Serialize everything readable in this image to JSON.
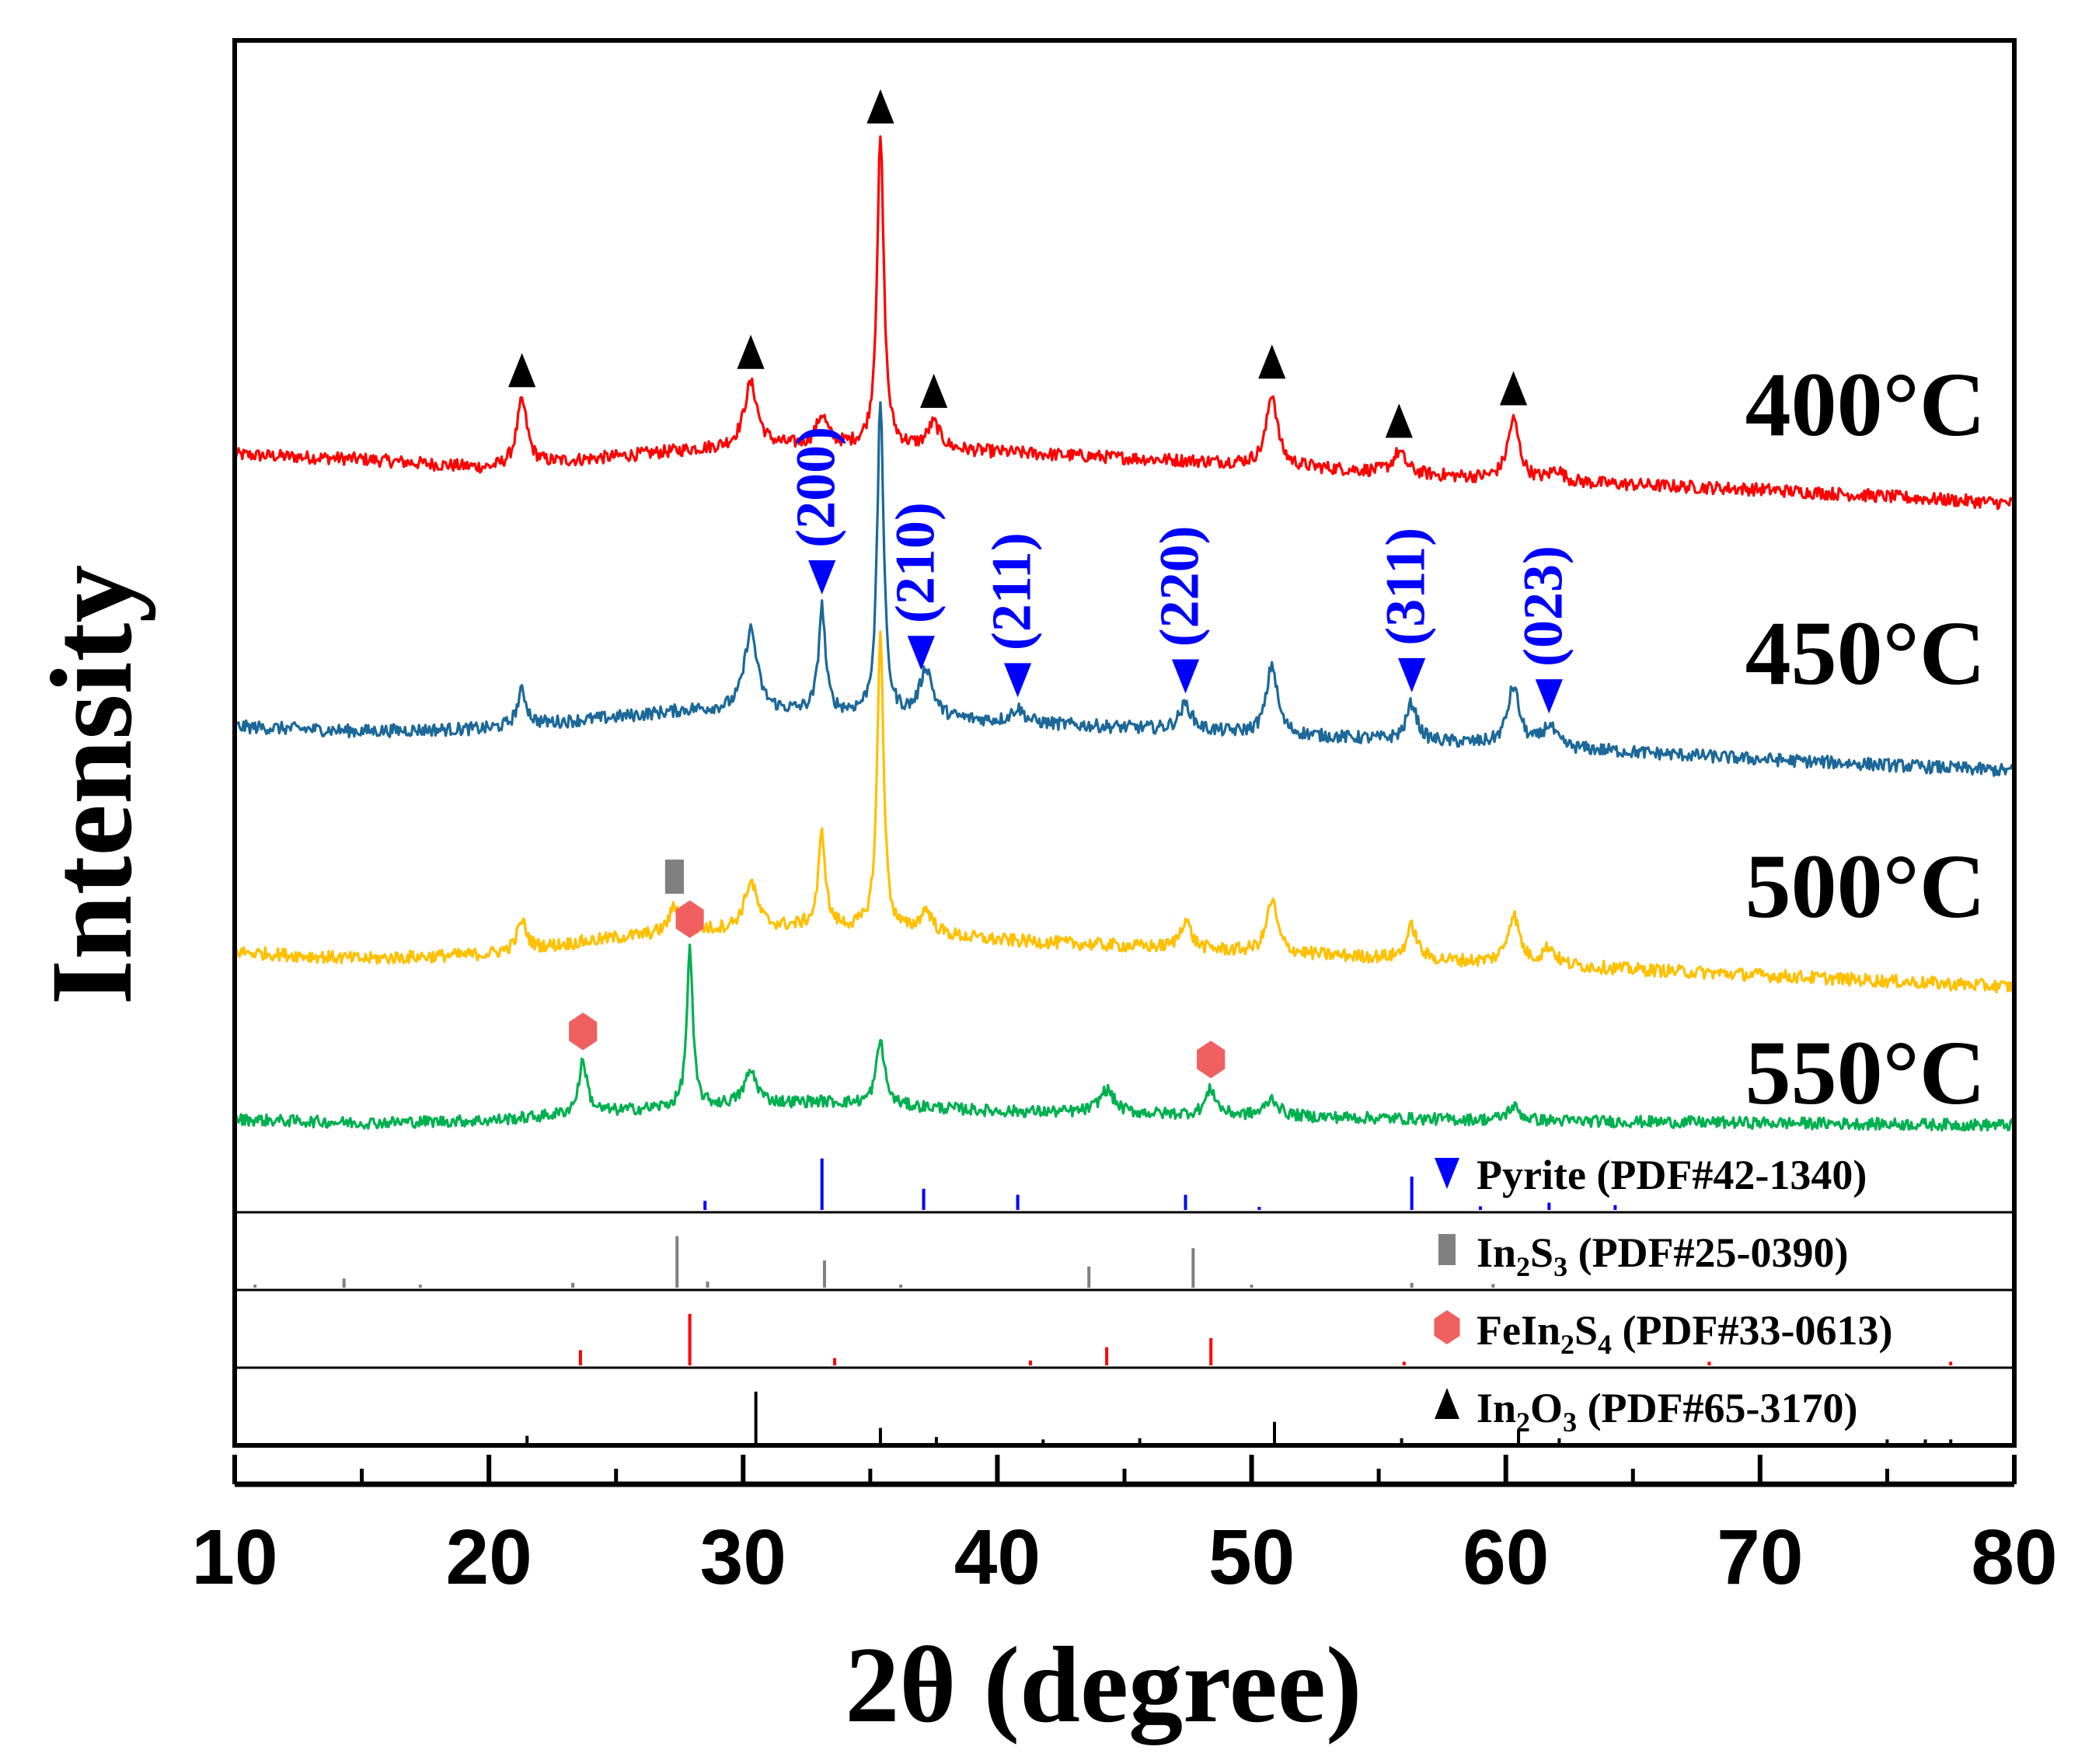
{
  "chart_data": {
    "type": "line",
    "xlabel": "2θ (degree)",
    "ylabel": "Intensity",
    "xlim": [
      10,
      80
    ],
    "x_ticks": [
      10,
      20,
      30,
      40,
      50,
      60,
      70,
      80
    ],
    "x_tick_labels": [
      "10",
      "20",
      "30",
      "40",
      "50",
      "60",
      "70",
      "80"
    ],
    "series": [
      {
        "name": "400°C",
        "label": "400°C",
        "color": "#ff0000",
        "baseline": [
          [
            10,
            0.42
          ],
          [
            15,
            0.38
          ],
          [
            20,
            0.3
          ],
          [
            25,
            0.4
          ],
          [
            28,
            0.46
          ],
          [
            33,
            0.5
          ],
          [
            40,
            0.44
          ],
          [
            50,
            0.34
          ],
          [
            60,
            0.2
          ],
          [
            70,
            0.12
          ],
          [
            80,
            0.0
          ]
        ],
        "peaks": [
          [
            21.3,
            0.55,
            0.25
          ],
          [
            30.3,
            0.55,
            0.32
          ],
          [
            33.1,
            0.25,
            0.25
          ],
          [
            35.4,
            2.65,
            0.16
          ],
          [
            37.5,
            0.22,
            0.3
          ],
          [
            50.8,
            0.62,
            0.25
          ],
          [
            55.8,
            0.18,
            0.3
          ],
          [
            60.3,
            0.52,
            0.28
          ],
          [
            62.0,
            0.1,
            0.3
          ]
        ],
        "noise": 0.055
      },
      {
        "name": "450°C",
        "label": "450°C",
        "color": "#1c6898",
        "baseline": [
          [
            10,
            0.38
          ],
          [
            15,
            0.34
          ],
          [
            20,
            0.36
          ],
          [
            25,
            0.46
          ],
          [
            28,
            0.52
          ],
          [
            33,
            0.5
          ],
          [
            40,
            0.42
          ],
          [
            50,
            0.32
          ],
          [
            60,
            0.22
          ],
          [
            70,
            0.1
          ],
          [
            80,
            0.0
          ]
        ],
        "peaks": [
          [
            21.3,
            0.3,
            0.22
          ],
          [
            30.3,
            0.7,
            0.3
          ],
          [
            33.1,
            0.9,
            0.16
          ],
          [
            35.4,
            2.7,
            0.15
          ],
          [
            37.2,
            0.42,
            0.3
          ],
          [
            40.8,
            0.12,
            0.3
          ],
          [
            47.4,
            0.22,
            0.3
          ],
          [
            50.8,
            0.6,
            0.25
          ],
          [
            56.3,
            0.32,
            0.25
          ],
          [
            60.3,
            0.5,
            0.28
          ],
          [
            61.7,
            0.18,
            0.3
          ]
        ],
        "noise": 0.055
      },
      {
        "name": "500°C",
        "label": "500°C",
        "color": "#ffc000",
        "baseline": [
          [
            10,
            0.3
          ],
          [
            15,
            0.24
          ],
          [
            20,
            0.28
          ],
          [
            25,
            0.42
          ],
          [
            28,
            0.48
          ],
          [
            33,
            0.52
          ],
          [
            40,
            0.4
          ],
          [
            50,
            0.3
          ],
          [
            60,
            0.2
          ],
          [
            70,
            0.1
          ],
          [
            80,
            0.0
          ]
        ],
        "peaks": [
          [
            21.3,
            0.25,
            0.22
          ],
          [
            27.3,
            0.22,
            0.25
          ],
          [
            30.3,
            0.4,
            0.3
          ],
          [
            33.1,
            0.8,
            0.16
          ],
          [
            35.4,
            2.55,
            0.15
          ],
          [
            37.2,
            0.2,
            0.3
          ],
          [
            47.4,
            0.25,
            0.25
          ],
          [
            50.8,
            0.45,
            0.25
          ],
          [
            56.3,
            0.28,
            0.25
          ],
          [
            60.3,
            0.42,
            0.28
          ],
          [
            61.7,
            0.15,
            0.3
          ]
        ],
        "noise": 0.055
      },
      {
        "name": "550°C",
        "label": "550°C",
        "color": "#00b050",
        "baseline": [
          [
            10,
            0.05
          ],
          [
            15,
            0.02
          ],
          [
            20,
            0.04
          ],
          [
            25,
            0.12
          ],
          [
            28,
            0.16
          ],
          [
            33,
            0.2
          ],
          [
            40,
            0.12
          ],
          [
            50,
            0.08
          ],
          [
            60,
            0.04
          ],
          [
            70,
            0.02
          ],
          [
            80,
            0.0
          ]
        ],
        "peaks": [
          [
            23.7,
            0.45,
            0.2
          ],
          [
            27.9,
            1.35,
            0.14
          ],
          [
            30.3,
            0.28,
            0.3
          ],
          [
            35.4,
            0.55,
            0.2
          ],
          [
            44.3,
            0.2,
            0.35
          ],
          [
            48.4,
            0.22,
            0.25
          ],
          [
            50.8,
            0.15,
            0.3
          ],
          [
            60.3,
            0.12,
            0.3
          ]
        ],
        "noise": 0.05
      }
    ],
    "peak_markers": [
      {
        "phase": "In2O3",
        "symbol": "triangle-up",
        "color": "#000000",
        "series": "400°C",
        "x": [
          21.3,
          30.3,
          35.4,
          37.5,
          50.8,
          55.8,
          60.3
        ]
      },
      {
        "phase": "Pyrite",
        "symbol": "triangle-down",
        "color": "#0000ff",
        "series": "450°C",
        "x": [
          33.1,
          37.0,
          40.8,
          47.4,
          56.3,
          61.7
        ]
      },
      {
        "phase": "In2S3",
        "symbol": "square",
        "color": "#808080",
        "series": "500°C",
        "x": [
          27.3
        ]
      },
      {
        "phase": "FeIn2S4",
        "symbol": "hexagon",
        "color": "#f06060",
        "series": "550°C",
        "x": [
          23.7,
          27.9,
          48.4
        ]
      }
    ],
    "annotations": [
      {
        "text": "(200)",
        "x": 33.1
      },
      {
        "text": "(210)",
        "x": 37.0
      },
      {
        "text": "(211)",
        "x": 40.8
      },
      {
        "text": "(220)",
        "x": 47.4
      },
      {
        "text": "(311)",
        "x": 56.3
      },
      {
        "text": "(023)",
        "x": 61.7
      }
    ],
    "reference_patterns": [
      {
        "label": "Pyrite (PDF#42-1340)",
        "name_main": "Pyrite",
        "code": " (PDF#42-1340)",
        "color": "#0000ff",
        "symbol": "triangle-down",
        "lines": [
          [
            28.5,
            0.15
          ],
          [
            33.1,
            0.85
          ],
          [
            37.1,
            0.35
          ],
          [
            40.8,
            0.25
          ],
          [
            47.4,
            0.25
          ],
          [
            50.3,
            0.05
          ],
          [
            56.3,
            0.55
          ],
          [
            59.0,
            0.06
          ],
          [
            61.7,
            0.12
          ],
          [
            64.3,
            0.08
          ]
        ]
      },
      {
        "label": "In2S3 (PDF#25-0390)",
        "name_parts": [
          "In",
          "2",
          "S",
          "3"
        ],
        "code": " (PDF#25-0390)",
        "color": "#808080",
        "symbol": "square",
        "lines": [
          [
            10.8,
            0.05
          ],
          [
            14.3,
            0.15
          ],
          [
            17.3,
            0.05
          ],
          [
            23.3,
            0.08
          ],
          [
            27.4,
            0.85
          ],
          [
            28.6,
            0.1
          ],
          [
            33.2,
            0.45
          ],
          [
            36.2,
            0.05
          ],
          [
            43.6,
            0.35
          ],
          [
            47.7,
            0.65
          ],
          [
            50.0,
            0.05
          ],
          [
            56.3,
            0.08
          ],
          [
            59.5,
            0.06
          ]
        ]
      },
      {
        "label": "FeIn2S4 (PDF#33-0613)",
        "name_parts": [
          "FeIn",
          "2",
          "S",
          "4"
        ],
        "code": " (PDF#33-0613)",
        "color": "#ff0000",
        "symbol": "hexagon",
        "lines": [
          [
            23.6,
            0.25
          ],
          [
            27.9,
            0.85
          ],
          [
            33.6,
            0.12
          ],
          [
            41.3,
            0.08
          ],
          [
            44.3,
            0.3
          ],
          [
            48.4,
            0.45
          ],
          [
            56.0,
            0.06
          ],
          [
            68.0,
            0.06
          ],
          [
            77.5,
            0.06
          ]
        ]
      },
      {
        "label": "In2O3 (PDF#65-3170)",
        "name_parts": [
          "In",
          "2",
          "O",
          "3"
        ],
        "code": " (PDF#65-3170)",
        "color": "#000000",
        "symbol": "triangle-up",
        "lines": [
          [
            21.5,
            0.12
          ],
          [
            30.5,
            0.85
          ],
          [
            35.4,
            0.25
          ],
          [
            37.6,
            0.1
          ],
          [
            41.8,
            0.06
          ],
          [
            45.6,
            0.08
          ],
          [
            50.9,
            0.35
          ],
          [
            55.9,
            0.08
          ],
          [
            60.5,
            0.22
          ],
          [
            62.1,
            0.08
          ],
          [
            75.0,
            0.06
          ],
          [
            76.5,
            0.06
          ],
          [
            77.5,
            0.06
          ]
        ]
      }
    ]
  }
}
